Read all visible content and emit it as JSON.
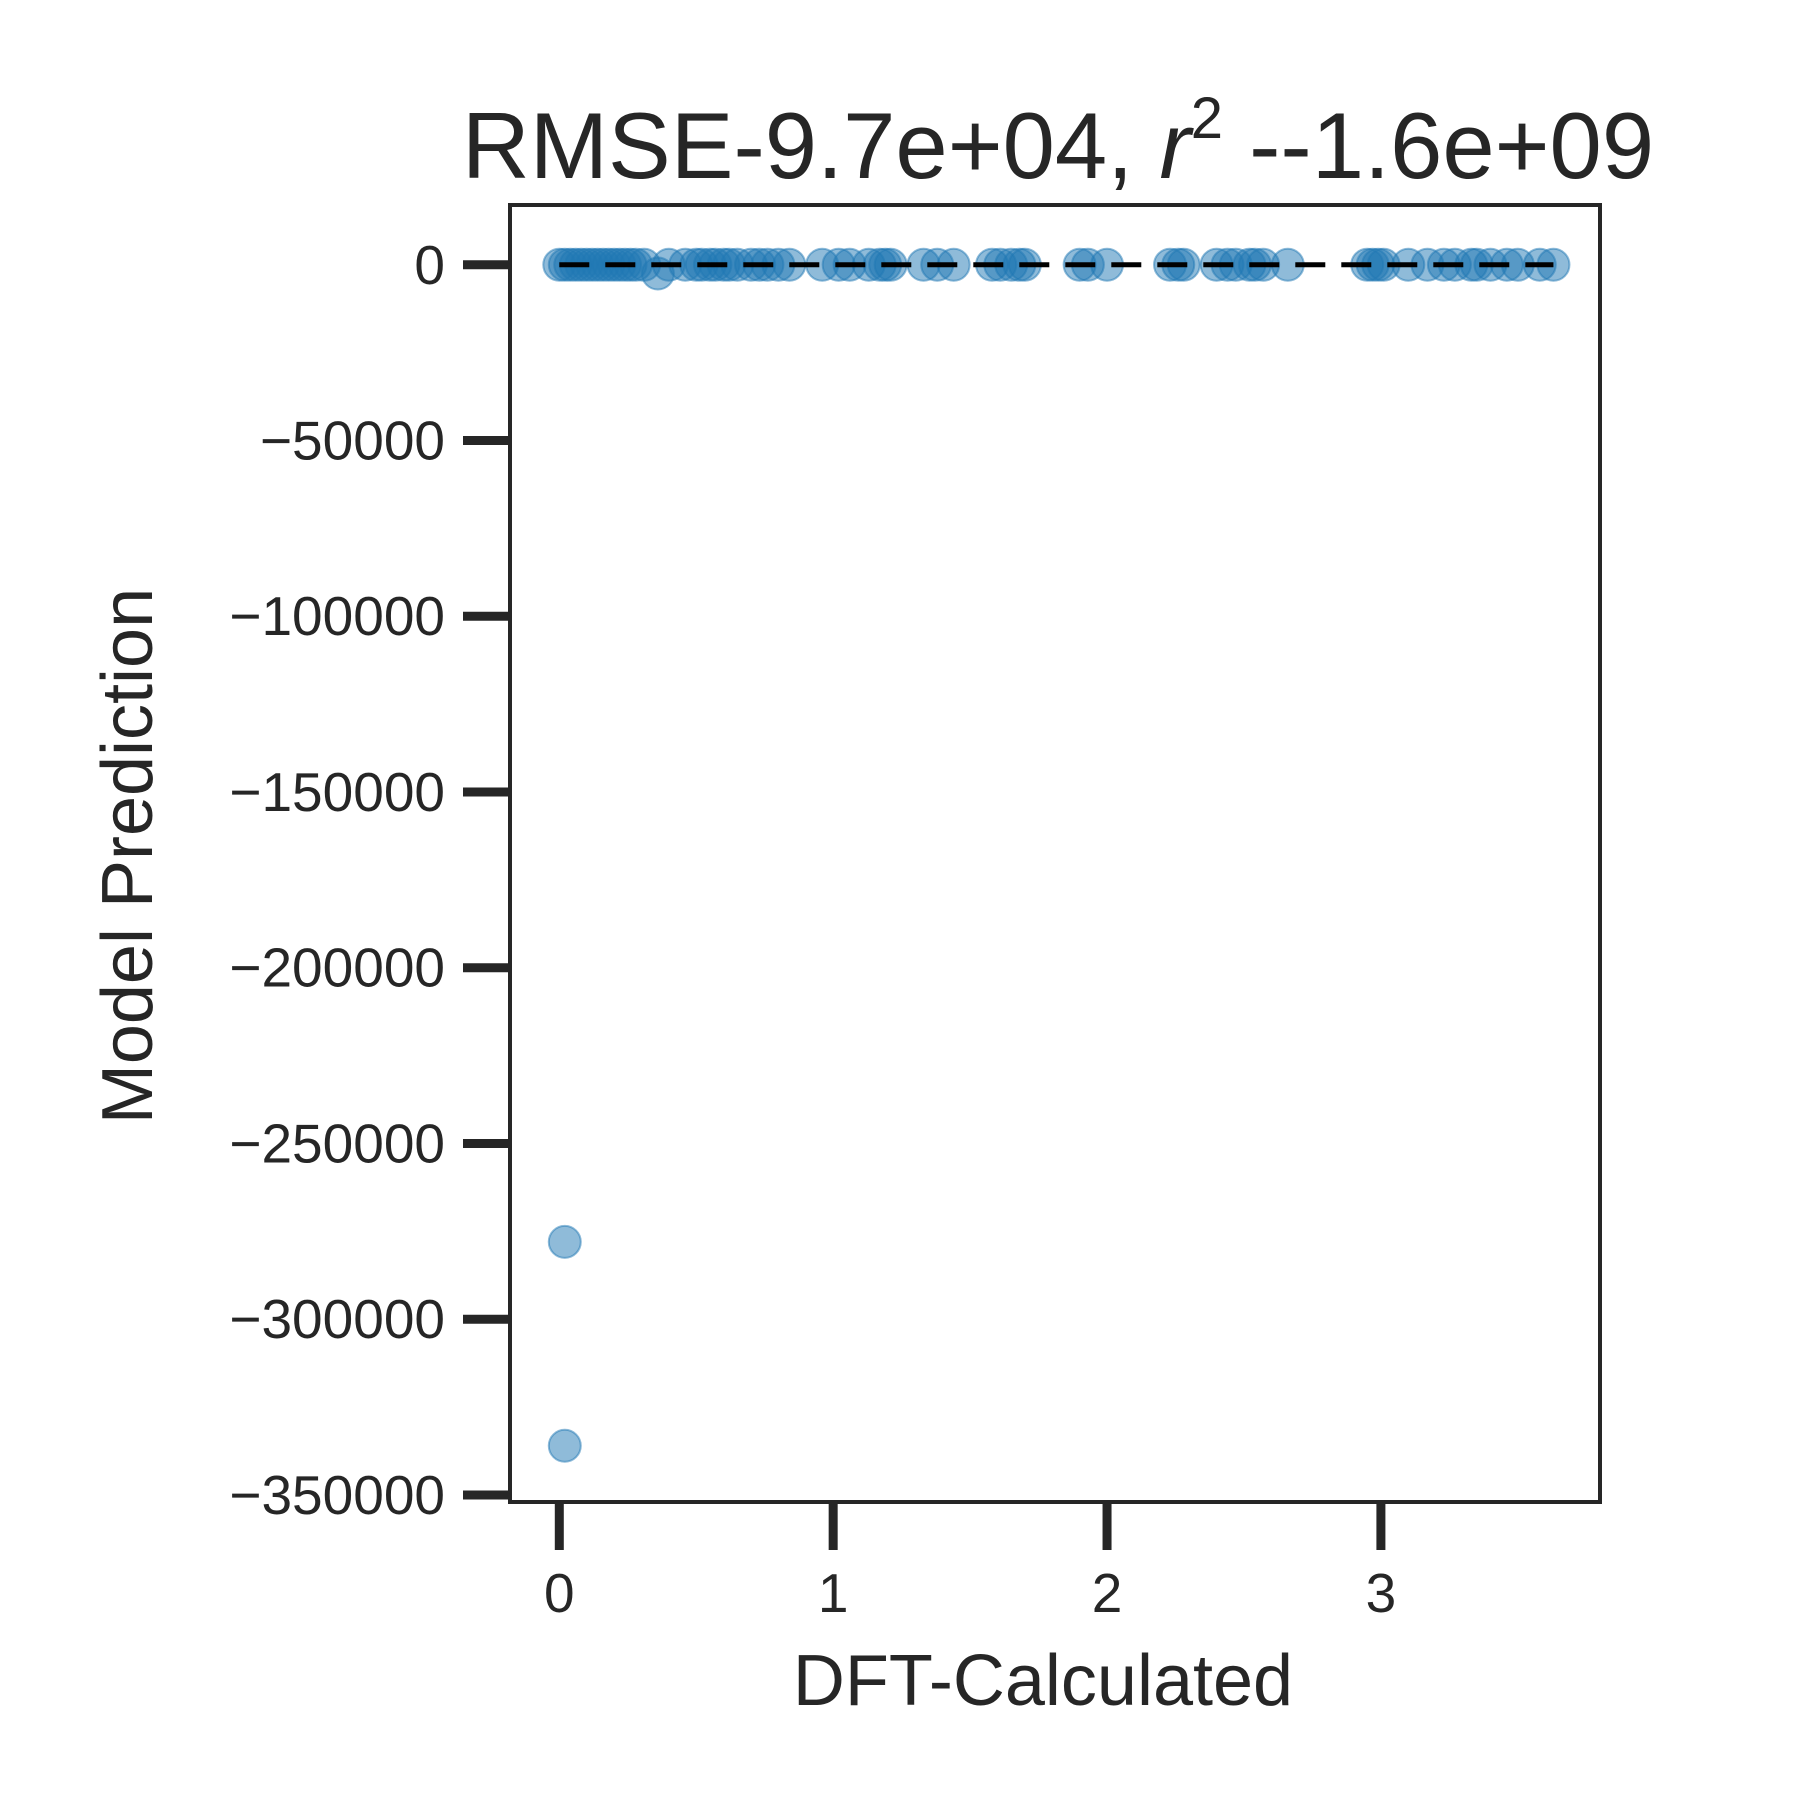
{
  "chart_data": {
    "type": "scatter",
    "title": {
      "prefix": "RMSE-9.7e+04, ",
      "r_symbol": "r",
      "r_exponent": "2",
      "suffix": " --1.6e+09"
    },
    "xlabel": "DFT-Calculated",
    "ylabel": "Model Prediction",
    "xlim": [
      -0.18,
      3.8
    ],
    "ylim": [
      -352000,
      17000
    ],
    "xticks": [
      {
        "value": 0,
        "label": "0"
      },
      {
        "value": 1,
        "label": "1"
      },
      {
        "value": 2,
        "label": "2"
      },
      {
        "value": 3,
        "label": "3"
      }
    ],
    "yticks": [
      {
        "value": 0,
        "label": "0"
      },
      {
        "value": -50000,
        "label": "−50000"
      },
      {
        "value": -100000,
        "label": "−100000"
      },
      {
        "value": -150000,
        "label": "−150000"
      },
      {
        "value": -200000,
        "label": "−200000"
      },
      {
        "value": -250000,
        "label": "−250000"
      },
      {
        "value": -300000,
        "label": "−300000"
      },
      {
        "value": -350000,
        "label": "−350000"
      }
    ],
    "grid": false,
    "marker_color": "#1f77b4",
    "marker_alpha": 0.5,
    "reference_line": {
      "style": "dashed",
      "color": "#000000",
      "x": [
        0,
        3.63
      ],
      "y": [
        0,
        0
      ]
    },
    "points": [
      {
        "x": 0.0,
        "y": 0
      },
      {
        "x": 0.02,
        "y": 0
      },
      {
        "x": 0.04,
        "y": 0
      },
      {
        "x": 0.06,
        "y": 0
      },
      {
        "x": 0.08,
        "y": 0
      },
      {
        "x": 0.1,
        "y": 0
      },
      {
        "x": 0.12,
        "y": 0
      },
      {
        "x": 0.14,
        "y": 0
      },
      {
        "x": 0.16,
        "y": 0
      },
      {
        "x": 0.18,
        "y": 0
      },
      {
        "x": 0.2,
        "y": 0
      },
      {
        "x": 0.22,
        "y": 0
      },
      {
        "x": 0.24,
        "y": 0
      },
      {
        "x": 0.26,
        "y": 0
      },
      {
        "x": 0.28,
        "y": 0
      },
      {
        "x": 0.31,
        "y": 0
      },
      {
        "x": 0.36,
        "y": -2500
      },
      {
        "x": 0.4,
        "y": 0
      },
      {
        "x": 0.46,
        "y": 0
      },
      {
        "x": 0.5,
        "y": 0
      },
      {
        "x": 0.52,
        "y": 0
      },
      {
        "x": 0.55,
        "y": 0
      },
      {
        "x": 0.57,
        "y": 0
      },
      {
        "x": 0.6,
        "y": 0
      },
      {
        "x": 0.62,
        "y": 0
      },
      {
        "x": 0.65,
        "y": 0
      },
      {
        "x": 0.7,
        "y": 0
      },
      {
        "x": 0.73,
        "y": 0
      },
      {
        "x": 0.76,
        "y": 0
      },
      {
        "x": 0.8,
        "y": 0
      },
      {
        "x": 0.84,
        "y": 0
      },
      {
        "x": 0.96,
        "y": 0
      },
      {
        "x": 1.02,
        "y": 0
      },
      {
        "x": 1.06,
        "y": 0
      },
      {
        "x": 1.13,
        "y": 0
      },
      {
        "x": 1.17,
        "y": 0
      },
      {
        "x": 1.19,
        "y": 0
      },
      {
        "x": 1.21,
        "y": 0
      },
      {
        "x": 1.33,
        "y": 0
      },
      {
        "x": 1.38,
        "y": 0
      },
      {
        "x": 1.44,
        "y": 0
      },
      {
        "x": 1.58,
        "y": 0
      },
      {
        "x": 1.61,
        "y": 0
      },
      {
        "x": 1.65,
        "y": 0
      },
      {
        "x": 1.68,
        "y": 0
      },
      {
        "x": 1.7,
        "y": 0
      },
      {
        "x": 1.9,
        "y": 0
      },
      {
        "x": 1.93,
        "y": 0
      },
      {
        "x": 2.0,
        "y": 0
      },
      {
        "x": 2.23,
        "y": 0
      },
      {
        "x": 2.26,
        "y": 0
      },
      {
        "x": 2.28,
        "y": 0
      },
      {
        "x": 2.4,
        "y": 0
      },
      {
        "x": 2.44,
        "y": 0
      },
      {
        "x": 2.47,
        "y": 0
      },
      {
        "x": 2.52,
        "y": 0
      },
      {
        "x": 2.54,
        "y": 0
      },
      {
        "x": 2.57,
        "y": 0
      },
      {
        "x": 2.66,
        "y": 0
      },
      {
        "x": 2.95,
        "y": 0
      },
      {
        "x": 2.97,
        "y": 0
      },
      {
        "x": 2.99,
        "y": 0
      },
      {
        "x": 3.01,
        "y": 0
      },
      {
        "x": 3.1,
        "y": 0
      },
      {
        "x": 3.17,
        "y": 0
      },
      {
        "x": 3.23,
        "y": 0
      },
      {
        "x": 3.27,
        "y": 0
      },
      {
        "x": 3.33,
        "y": 0
      },
      {
        "x": 3.35,
        "y": 0
      },
      {
        "x": 3.4,
        "y": 0
      },
      {
        "x": 3.46,
        "y": 0
      },
      {
        "x": 3.5,
        "y": 0
      },
      {
        "x": 3.58,
        "y": 0
      },
      {
        "x": 3.63,
        "y": 0
      },
      {
        "x": 0.02,
        "y": -278000
      },
      {
        "x": 0.02,
        "y": -336000
      }
    ]
  }
}
